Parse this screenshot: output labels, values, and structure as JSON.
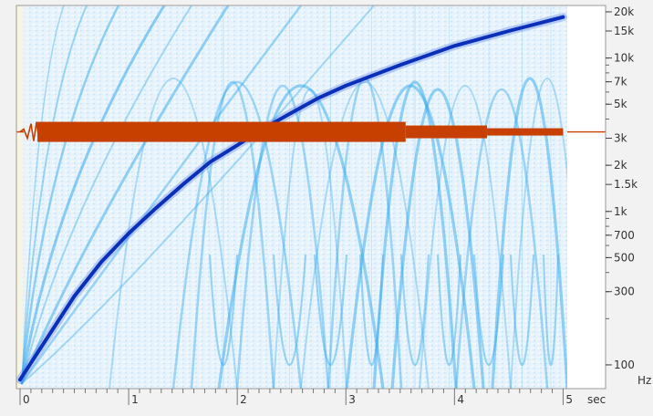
{
  "chart_data": {
    "type": "spectrogram",
    "title": "",
    "xlabel": "sec",
    "ylabel": "Hz",
    "xlim": [
      0,
      5.03
    ],
    "ylim": [
      70,
      22000
    ],
    "y_scale": "log",
    "x_ticks": [
      {
        "value": 0,
        "label": "0"
      },
      {
        "value": 1,
        "label": "1"
      },
      {
        "value": 2,
        "label": "2"
      },
      {
        "value": 3,
        "label": "3"
      },
      {
        "value": 4,
        "label": "4"
      },
      {
        "value": 5,
        "label": "5"
      }
    ],
    "y_ticks": [
      {
        "value": 20000,
        "label": "20k"
      },
      {
        "value": 15000,
        "label": "15k"
      },
      {
        "value": 10000,
        "label": "10k"
      },
      {
        "value": 7000,
        "label": "7k"
      },
      {
        "value": 5000,
        "label": "5k"
      },
      {
        "value": 3000,
        "label": "3k"
      },
      {
        "value": 2000,
        "label": "2k"
      },
      {
        "value": 1500,
        "label": "1.5k"
      },
      {
        "value": 1000,
        "label": "1k"
      },
      {
        "value": 700,
        "label": "700"
      },
      {
        "value": 500,
        "label": "500"
      },
      {
        "value": 300,
        "label": "300"
      },
      {
        "value": 100,
        "label": "100"
      }
    ],
    "series": [
      {
        "kind": "sweep",
        "x": [
          0,
          0.25,
          0.5,
          0.75,
          1.0,
          1.25,
          1.5,
          1.75,
          2.0,
          2.25,
          2.5,
          2.75,
          3.0,
          3.5,
          4.0,
          4.5,
          5.0
        ],
        "y": [
          80,
          150,
          280,
          470,
          720,
          1050,
          1500,
          2100,
          2700,
          3500,
          4400,
          5500,
          6600,
          9000,
          12000,
          15000,
          18500
        ]
      },
      {
        "kind": "tone",
        "x": [
          0,
          5.03
        ],
        "y": [
          3300,
          3300
        ]
      }
    ],
    "colors": {
      "sweep": "#0a2fb8",
      "tone": "#c84000",
      "harmonics": "#35aaf0",
      "background": "#e6f2fc"
    },
    "grid": false
  }
}
